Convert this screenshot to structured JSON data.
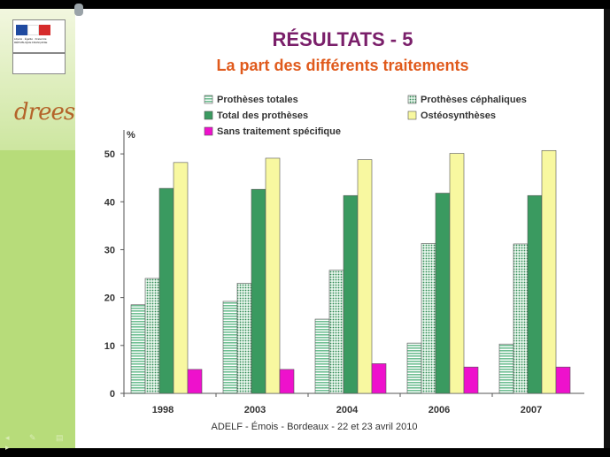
{
  "slide": {
    "title": "RÉSULTATS - 5",
    "subtitle": "La part des différents traitements",
    "footer": "ADELF - Émois - Bordeaux - 22 et 23 avril 2010"
  },
  "sidebar": {
    "logo_ministry": "MINISTÈRE DE LA SANTÉ ET DES SPORTS",
    "logo_republic": "Liberté · Égalité · Fraternité RÉPUBLIQUE FRANÇAISE",
    "logo_drees": "drees"
  },
  "chart_data": {
    "type": "bar",
    "title": "",
    "ylabel": "%",
    "xlabel": "",
    "ylim": [
      0,
      55
    ],
    "yticks": [
      0,
      10,
      20,
      30,
      40,
      50
    ],
    "categories": [
      "1998",
      "2003",
      "2004",
      "2006",
      "2007"
    ],
    "legend_position": "top",
    "series": [
      {
        "name": "Prothèses totales",
        "color": "#9fd6b6",
        "pattern": "horizontal-lines",
        "values": [
          18.5,
          19.2,
          15.5,
          10.5,
          10.3
        ]
      },
      {
        "name": "Prothèses céphaliques",
        "color": "#bfe6cc",
        "pattern": "dots",
        "values": [
          24.0,
          23.0,
          25.7,
          31.3,
          31.2
        ]
      },
      {
        "name": "Total des prothèses",
        "color": "#3a9a60",
        "pattern": "solid",
        "values": [
          42.8,
          42.6,
          41.3,
          41.8,
          41.3
        ]
      },
      {
        "name": "Ostéosynthèses",
        "color": "#f8f8a0",
        "pattern": "solid",
        "values": [
          48.2,
          49.1,
          48.8,
          50.1,
          50.7
        ]
      },
      {
        "name": "Sans traitement spécifique",
        "color": "#ee11cc",
        "pattern": "solid",
        "values": [
          5.0,
          5.0,
          6.2,
          5.5,
          5.5
        ]
      }
    ]
  }
}
